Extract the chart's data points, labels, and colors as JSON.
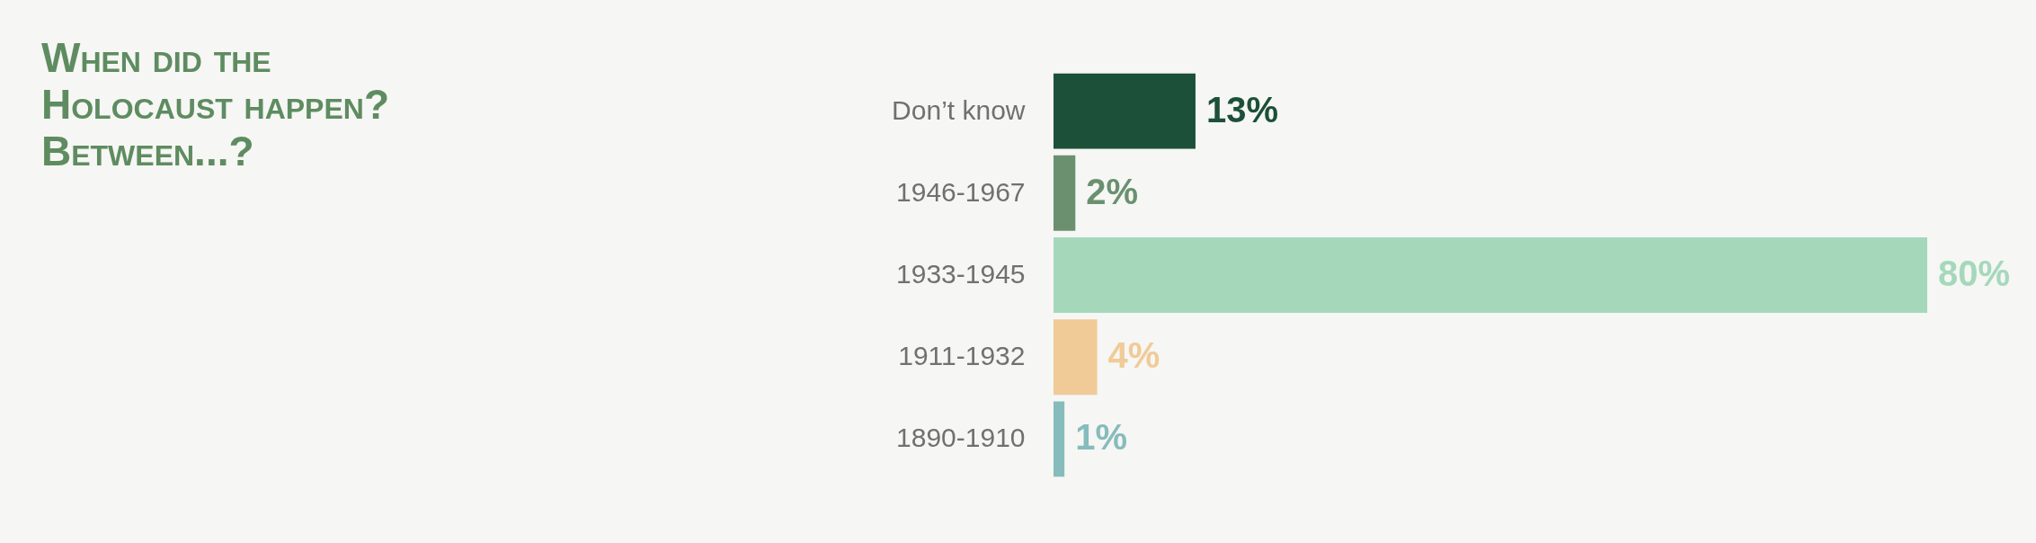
{
  "chart_data": {
    "type": "bar",
    "orientation": "horizontal",
    "title": "When did the Holocaust happen? Between...?",
    "categories": [
      "Don’t know",
      "1946-1967",
      "1933-1945",
      "1911-1932",
      "1890-1910"
    ],
    "values": [
      13,
      2,
      80,
      4,
      1
    ],
    "colors": [
      "#1c5038",
      "#6a9070",
      "#a5d8bb",
      "#f0cb98",
      "#86bcbc"
    ],
    "value_labels": [
      "13%",
      "2%",
      "80%",
      "4%",
      "1%"
    ]
  }
}
